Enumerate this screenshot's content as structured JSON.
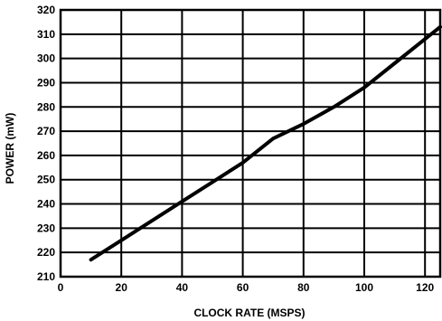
{
  "chart_data": {
    "type": "line",
    "title": "",
    "xlabel": "CLOCK RATE (MSPS)",
    "ylabel": "POWER (mW)",
    "xlim": [
      0,
      125
    ],
    "ylim": [
      210,
      320
    ],
    "xticks": [
      0,
      20,
      40,
      60,
      80,
      100,
      120
    ],
    "yticks": [
      210,
      220,
      230,
      240,
      250,
      260,
      270,
      280,
      290,
      300,
      310,
      320
    ],
    "grid": true,
    "legend": "none",
    "series": [
      {
        "x": [
          10,
          20,
          30,
          40,
          50,
          60,
          70,
          80,
          90,
          100,
          110,
          120,
          125
        ],
        "y": [
          217,
          225,
          233,
          241,
          249,
          257,
          267,
          273,
          280,
          288,
          298,
          308,
          313
        ]
      }
    ]
  }
}
